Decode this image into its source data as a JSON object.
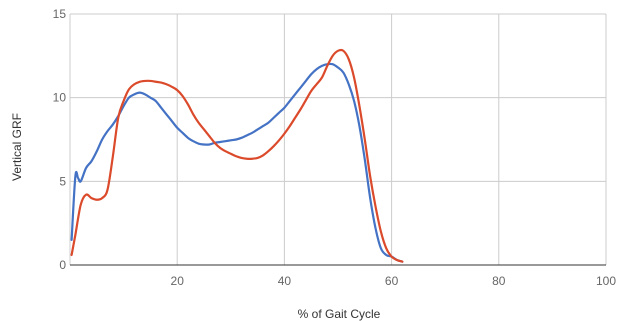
{
  "chart_data": {
    "type": "line",
    "title": "",
    "xlabel": "% of Gait Cycle",
    "ylabel": "Vertical GRF",
    "xlim": [
      0,
      100
    ],
    "ylim": [
      0,
      15
    ],
    "x_ticks": [
      20,
      40,
      60,
      80,
      100
    ],
    "y_ticks": [
      0,
      5,
      10,
      15
    ],
    "grid": true,
    "legend": "none",
    "colors": {
      "series_blue": "#4472c4",
      "series_red": "#db4a2b",
      "grid": "#cccccc",
      "axis": "#333333"
    },
    "series": [
      {
        "color": "#4472c4",
        "x": [
          0.3,
          1,
          1.5,
          2,
          3,
          4,
          5,
          6,
          7,
          8,
          9,
          10,
          11,
          12,
          13,
          14,
          15,
          16,
          17,
          18,
          19,
          20,
          21,
          22,
          23,
          24,
          25,
          26,
          27,
          28,
          29,
          30,
          31,
          32,
          33,
          34,
          35,
          36,
          37,
          38,
          39,
          40,
          41,
          42,
          43,
          44,
          45,
          46,
          47,
          48,
          49,
          50,
          51,
          52,
          53,
          54,
          55,
          56,
          57,
          58,
          59,
          60,
          61,
          62
        ],
        "y": [
          1.5,
          5.3,
          5.2,
          5.0,
          5.8,
          6.2,
          6.8,
          7.5,
          8.0,
          8.4,
          8.9,
          9.5,
          10.0,
          10.2,
          10.3,
          10.2,
          10.0,
          9.8,
          9.4,
          9.0,
          8.6,
          8.2,
          7.9,
          7.6,
          7.4,
          7.25,
          7.2,
          7.2,
          7.3,
          7.35,
          7.4,
          7.45,
          7.5,
          7.6,
          7.75,
          7.9,
          8.1,
          8.3,
          8.5,
          8.8,
          9.1,
          9.4,
          9.8,
          10.2,
          10.6,
          11.0,
          11.4,
          11.7,
          11.9,
          12.0,
          12.0,
          11.8,
          11.5,
          10.8,
          9.8,
          8.3,
          6.3,
          4.0,
          2.2,
          1.0,
          0.6,
          0.5,
          0.3,
          0.2
        ]
      },
      {
        "color": "#db4a2b",
        "x": [
          0.3,
          1,
          2,
          3,
          4,
          5,
          6,
          7,
          8,
          9,
          10,
          11,
          12,
          13,
          14,
          15,
          16,
          17,
          18,
          19,
          20,
          21,
          22,
          23,
          24,
          25,
          26,
          27,
          28,
          29,
          30,
          31,
          32,
          33,
          34,
          35,
          36,
          37,
          38,
          39,
          40,
          41,
          42,
          43,
          44,
          45,
          46,
          47,
          48,
          49,
          50,
          51,
          52,
          53,
          54,
          55,
          56,
          57,
          58,
          59,
          60,
          61,
          62
        ],
        "y": [
          0.6,
          1.8,
          3.6,
          4.2,
          4.0,
          3.9,
          4.0,
          4.5,
          6.5,
          8.8,
          9.8,
          10.5,
          10.8,
          10.95,
          11.0,
          11.0,
          10.95,
          10.9,
          10.8,
          10.65,
          10.45,
          10.1,
          9.6,
          9.0,
          8.5,
          8.1,
          7.7,
          7.3,
          7.0,
          6.8,
          6.65,
          6.5,
          6.4,
          6.35,
          6.35,
          6.4,
          6.55,
          6.8,
          7.1,
          7.45,
          7.85,
          8.3,
          8.8,
          9.3,
          9.85,
          10.4,
          10.8,
          11.2,
          11.9,
          12.5,
          12.8,
          12.8,
          12.3,
          11.2,
          9.5,
          7.5,
          5.3,
          3.5,
          2.0,
          1.0,
          0.5,
          0.3,
          0.2
        ]
      }
    ]
  }
}
